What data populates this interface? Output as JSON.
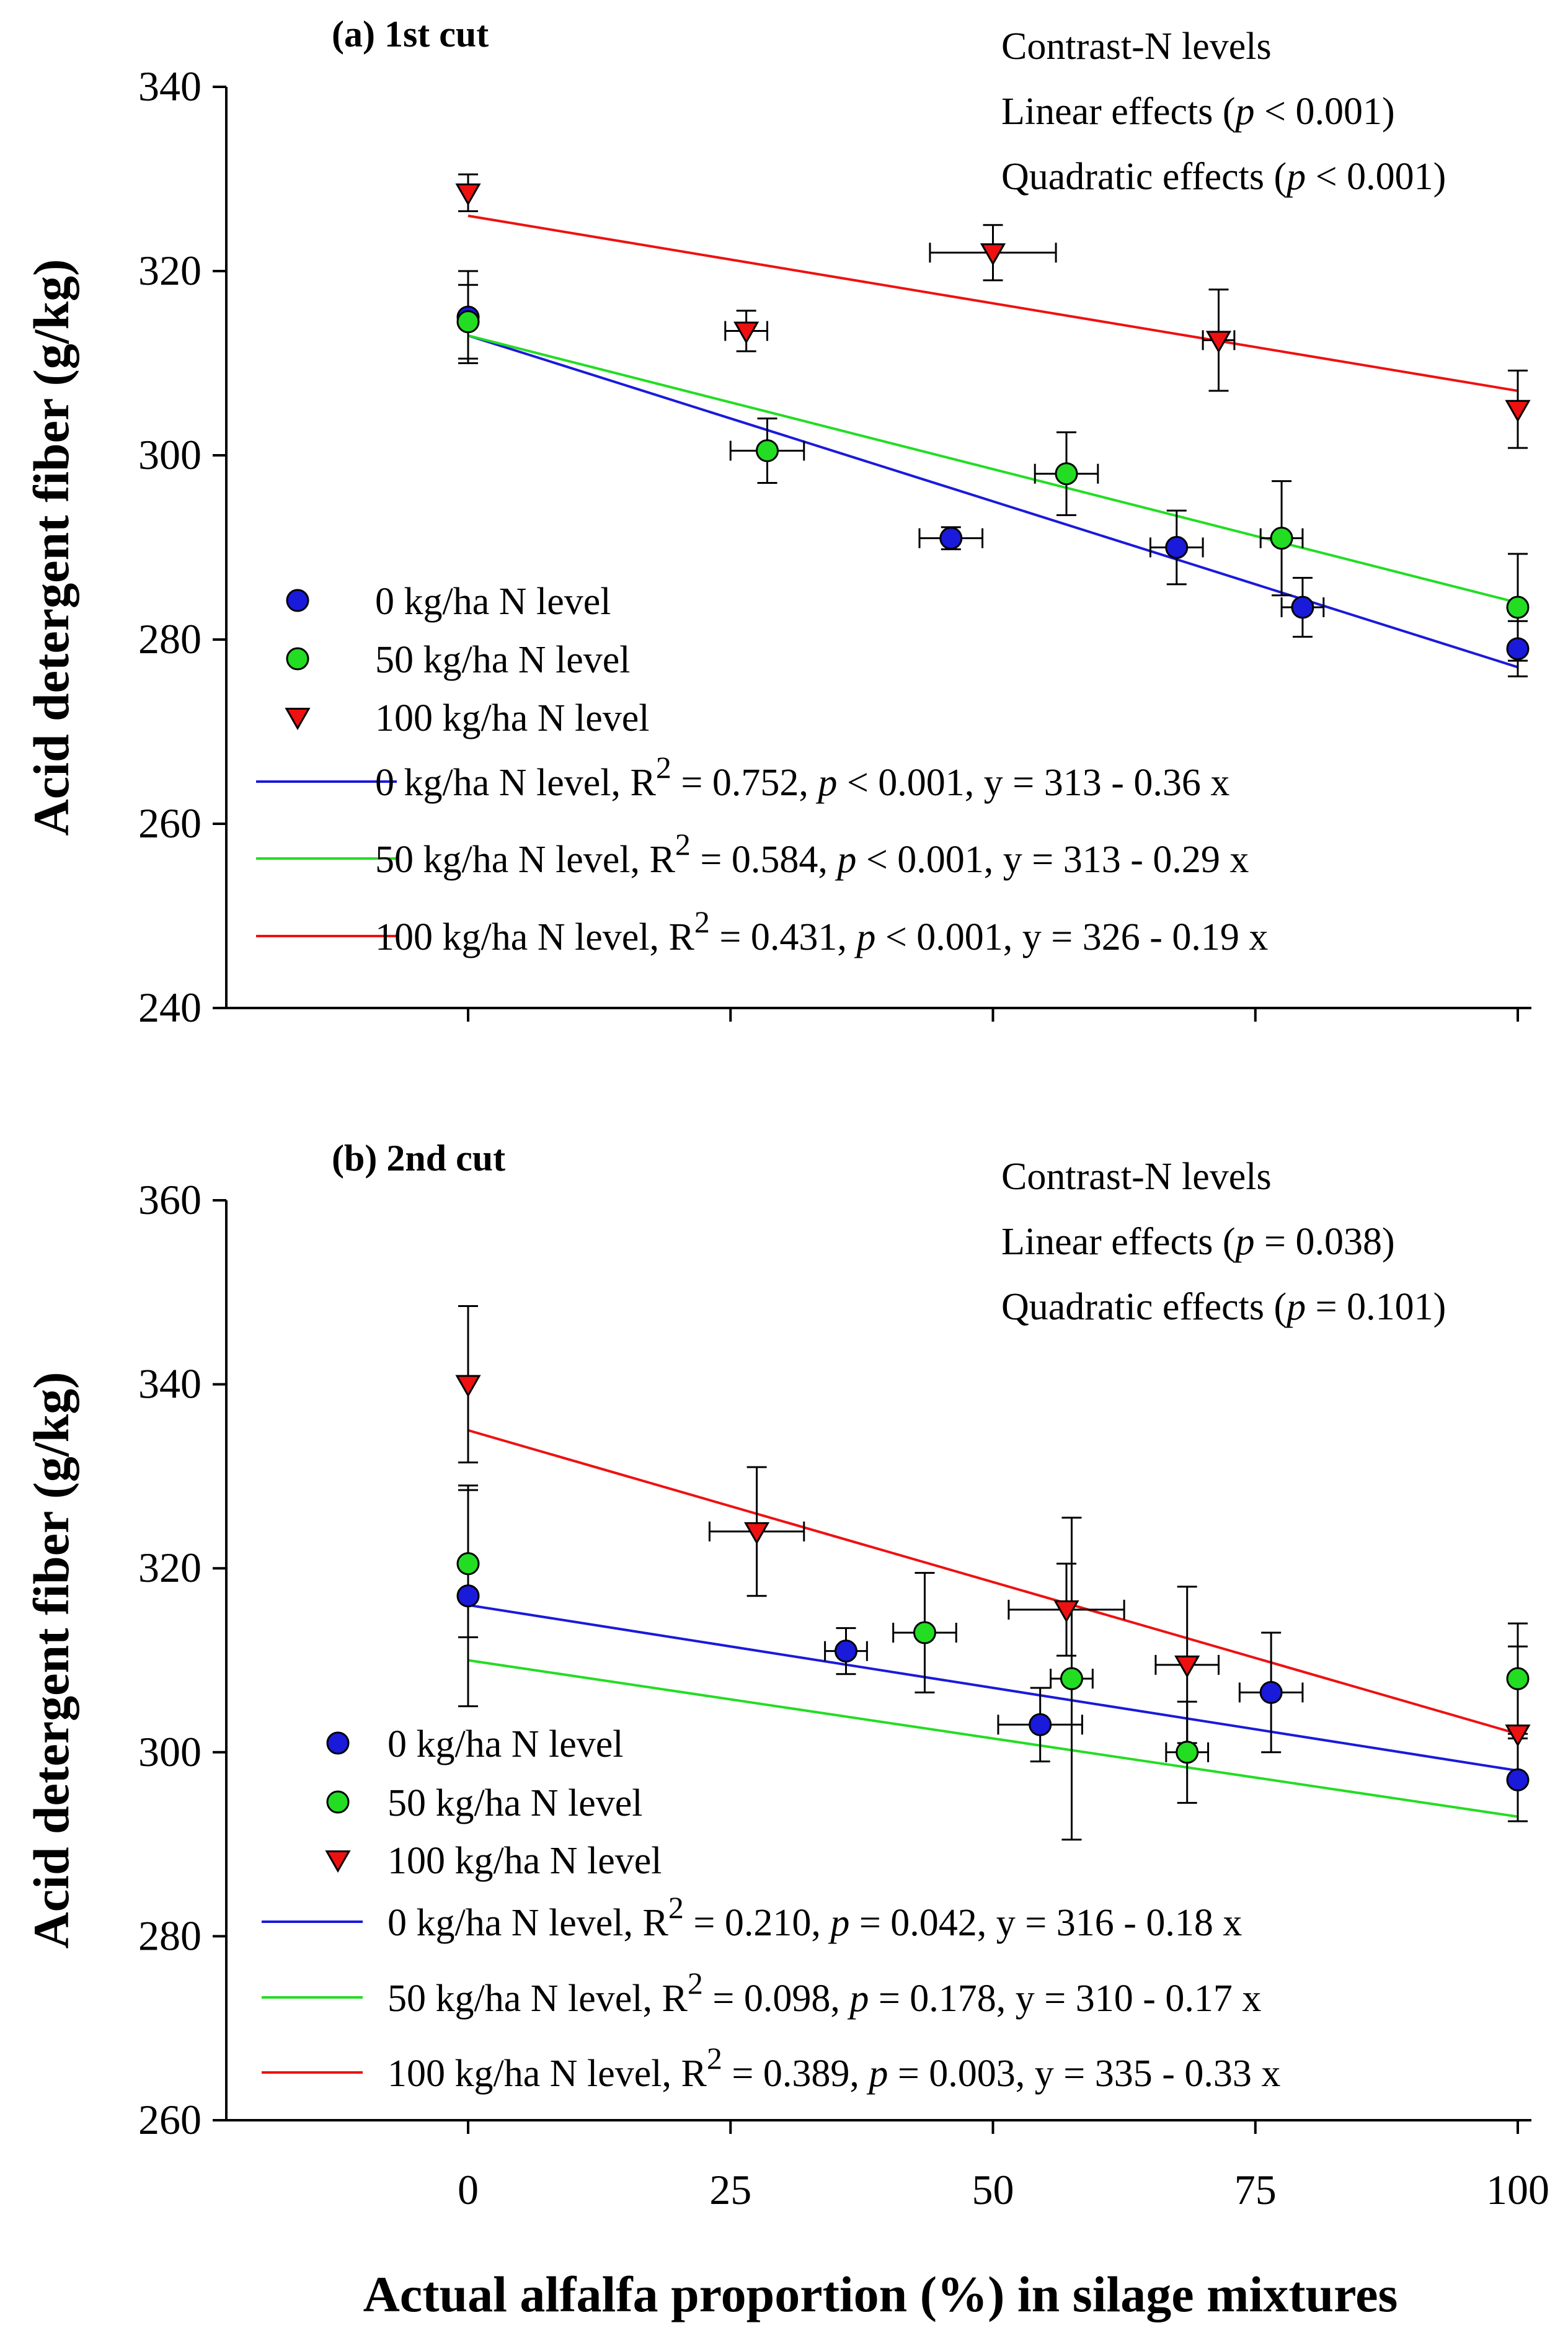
{
  "figure": {
    "x_axis_label": "Actual alfalfa proportion (%) in silage mixtures",
    "x_ticks": [
      "0",
      "25",
      "50",
      "75",
      "100"
    ]
  },
  "chart_data": [
    {
      "type": "scatter",
      "panel_label": "(a)  1st cut",
      "ylabel": "Acid detergent fiber (g/kg)",
      "xlabel": "Actual alfalfa proportion (%) in silage mixtures",
      "xlim": [
        -23,
        104
      ],
      "ylim": [
        240,
        340
      ],
      "yticks": [
        240,
        260,
        280,
        300,
        320,
        340
      ],
      "xticks": [
        0,
        25,
        50,
        75,
        100
      ],
      "contrast_title": "Contrast-N levels",
      "contrast_linear": {
        "pre": "Linear effects (",
        "p": "p",
        "post": " < 0.001)"
      },
      "contrast_quadratic": {
        "pre": "Quadratic effects (",
        "p": "p",
        "post": " < 0.001)"
      },
      "series": [
        {
          "name": "0 kg/ha N level",
          "marker": "circle",
          "color": "#1a1adb",
          "points": [
            {
              "x": 0,
              "y": 315,
              "ye": 5,
              "xe": 0
            },
            {
              "x": 46,
              "y": 291,
              "ye": 1.2,
              "xe": 3
            },
            {
              "x": 67.5,
              "y": 290,
              "ye": 4,
              "xe": 2.5
            },
            {
              "x": 79.5,
              "y": 283.5,
              "ye": 3.2,
              "xe": 2
            },
            {
              "x": 100,
              "y": 279,
              "ye": 3,
              "xe": 0
            }
          ],
          "fit": {
            "intercept": 313,
            "slope": -0.36
          },
          "fit_label": {
            "pre": "0 kg/ha N level, R",
            "sup": "2",
            "mid": " = 0.752, ",
            "p": "p",
            "post": " < 0.001, y = 313 - 0.36 x"
          }
        },
        {
          "name": "50 kg/ha N level",
          "marker": "circle",
          "color": "#22dd22",
          "points": [
            {
              "x": 0,
              "y": 314.5,
              "ye": 4,
              "xe": 0
            },
            {
              "x": 28.5,
              "y": 300.5,
              "ye": 3.5,
              "xe": 3.5
            },
            {
              "x": 57,
              "y": 298,
              "ye": 4.5,
              "xe": 3
            },
            {
              "x": 77.5,
              "y": 291,
              "ye": 6.2,
              "xe": 2
            },
            {
              "x": 100,
              "y": 283.5,
              "ye": 5.8,
              "xe": 0
            }
          ],
          "fit": {
            "intercept": 313,
            "slope": -0.29
          },
          "fit_label": {
            "pre": "50 kg/ha N level, R",
            "sup": "2",
            "mid": " = 0.584, ",
            "p": "p",
            "post": " < 0.001, y = 313 - 0.29 x"
          }
        },
        {
          "name": "100 kg/ha N level",
          "marker": "triangle-down",
          "color": "#ee1111",
          "points": [
            {
              "x": 0,
              "y": 328.5,
              "ye": 2,
              "xe": 0
            },
            {
              "x": 26.5,
              "y": 313.5,
              "ye": 2.2,
              "xe": 2
            },
            {
              "x": 50,
              "y": 322,
              "ye": 3,
              "xe": 6
            },
            {
              "x": 71.5,
              "y": 312.5,
              "ye": 5.5,
              "xe": 1.5
            },
            {
              "x": 100,
              "y": 305,
              "ye": 4.2,
              "xe": 0
            }
          ],
          "fit": {
            "intercept": 326,
            "slope": -0.19
          },
          "fit_label": {
            "pre": "100 kg/ha N level, R",
            "sup": "2",
            "mid": " = 0.431, ",
            "p": "p",
            "post": " < 0.001, y = 326 - 0.19 x"
          }
        }
      ]
    },
    {
      "type": "scatter",
      "panel_label": "(b)  2nd cut",
      "ylabel": "Acid detergent fiber (g/kg)",
      "xlabel": "Actual alfalfa proportion (%) in silage mixtures",
      "xlim": [
        -23,
        104
      ],
      "ylim": [
        260,
        360
      ],
      "yticks": [
        260,
        280,
        300,
        320,
        340,
        360
      ],
      "xticks": [
        0,
        25,
        50,
        75,
        100
      ],
      "contrast_title": "Contrast-N levels",
      "contrast_linear": {
        "pre": "Linear effects (",
        "p": "p",
        "post": " = 0.038)"
      },
      "contrast_quadratic": {
        "pre": "Quadratic effects (",
        "p": "p",
        "post": " = 0.101)"
      },
      "series": [
        {
          "name": "0 kg/ha N level",
          "marker": "circle",
          "color": "#1a1adb",
          "points": [
            {
              "x": 0,
              "y": 317,
              "ye": 12,
              "xe": 0
            },
            {
              "x": 36,
              "y": 311,
              "ye": 2.5,
              "xe": 2
            },
            {
              "x": 54.5,
              "y": 303,
              "ye": 4,
              "xe": 4
            },
            {
              "x": 76.5,
              "y": 306.5,
              "ye": 6.5,
              "xe": 3
            },
            {
              "x": 100,
              "y": 297,
              "ye": 4.5,
              "xe": 0
            }
          ],
          "fit": {
            "intercept": 316,
            "slope": -0.18
          },
          "fit_label": {
            "pre": "0 kg/ha N level, R",
            "sup": "2",
            "mid": " = 0.210, ",
            "p": "p",
            "post": " = 0.042, y = 316 - 0.18 x"
          }
        },
        {
          "name": "50 kg/ha N level",
          "marker": "circle",
          "color": "#22dd22",
          "points": [
            {
              "x": 0,
              "y": 320.5,
              "ye": 8,
              "xe": 0
            },
            {
              "x": 43.5,
              "y": 313,
              "ye": 6.5,
              "xe": 3
            },
            {
              "x": 57.5,
              "y": 308,
              "ye": 17.5,
              "xe": 2
            },
            {
              "x": 68.5,
              "y": 300,
              "ye": 5.5,
              "xe": 2
            },
            {
              "x": 100,
              "y": 308,
              "ye": 6,
              "xe": 0
            }
          ],
          "fit": {
            "intercept": 310,
            "slope": -0.17
          },
          "fit_label": {
            "pre": "50 kg/ha N level, R",
            "sup": "2",
            "mid": " = 0.098, ",
            "p": "p",
            "post": " = 0.178, y = 310 - 0.17 x"
          }
        },
        {
          "name": "100 kg/ha N level",
          "marker": "triangle-down",
          "color": "#ee1111",
          "points": [
            {
              "x": 0,
              "y": 340,
              "ye": 8.5,
              "xe": 0
            },
            {
              "x": 27.5,
              "y": 324,
              "ye": 7,
              "xe": 4.5
            },
            {
              "x": 57,
              "y": 315.5,
              "ye": 5,
              "xe": 5.5
            },
            {
              "x": 68.5,
              "y": 309.5,
              "ye": 8.5,
              "xe": 3
            },
            {
              "x": 100,
              "y": 302,
              "ye": 9.5,
              "xe": 0
            }
          ],
          "fit": {
            "intercept": 335,
            "slope": -0.33
          },
          "fit_label": {
            "pre": "100 kg/ha N level, R",
            "sup": "2",
            "mid": " = 0.389, ",
            "p": "p",
            "post": " = 0.003, y = 335 - 0.33 x"
          }
        }
      ]
    }
  ]
}
